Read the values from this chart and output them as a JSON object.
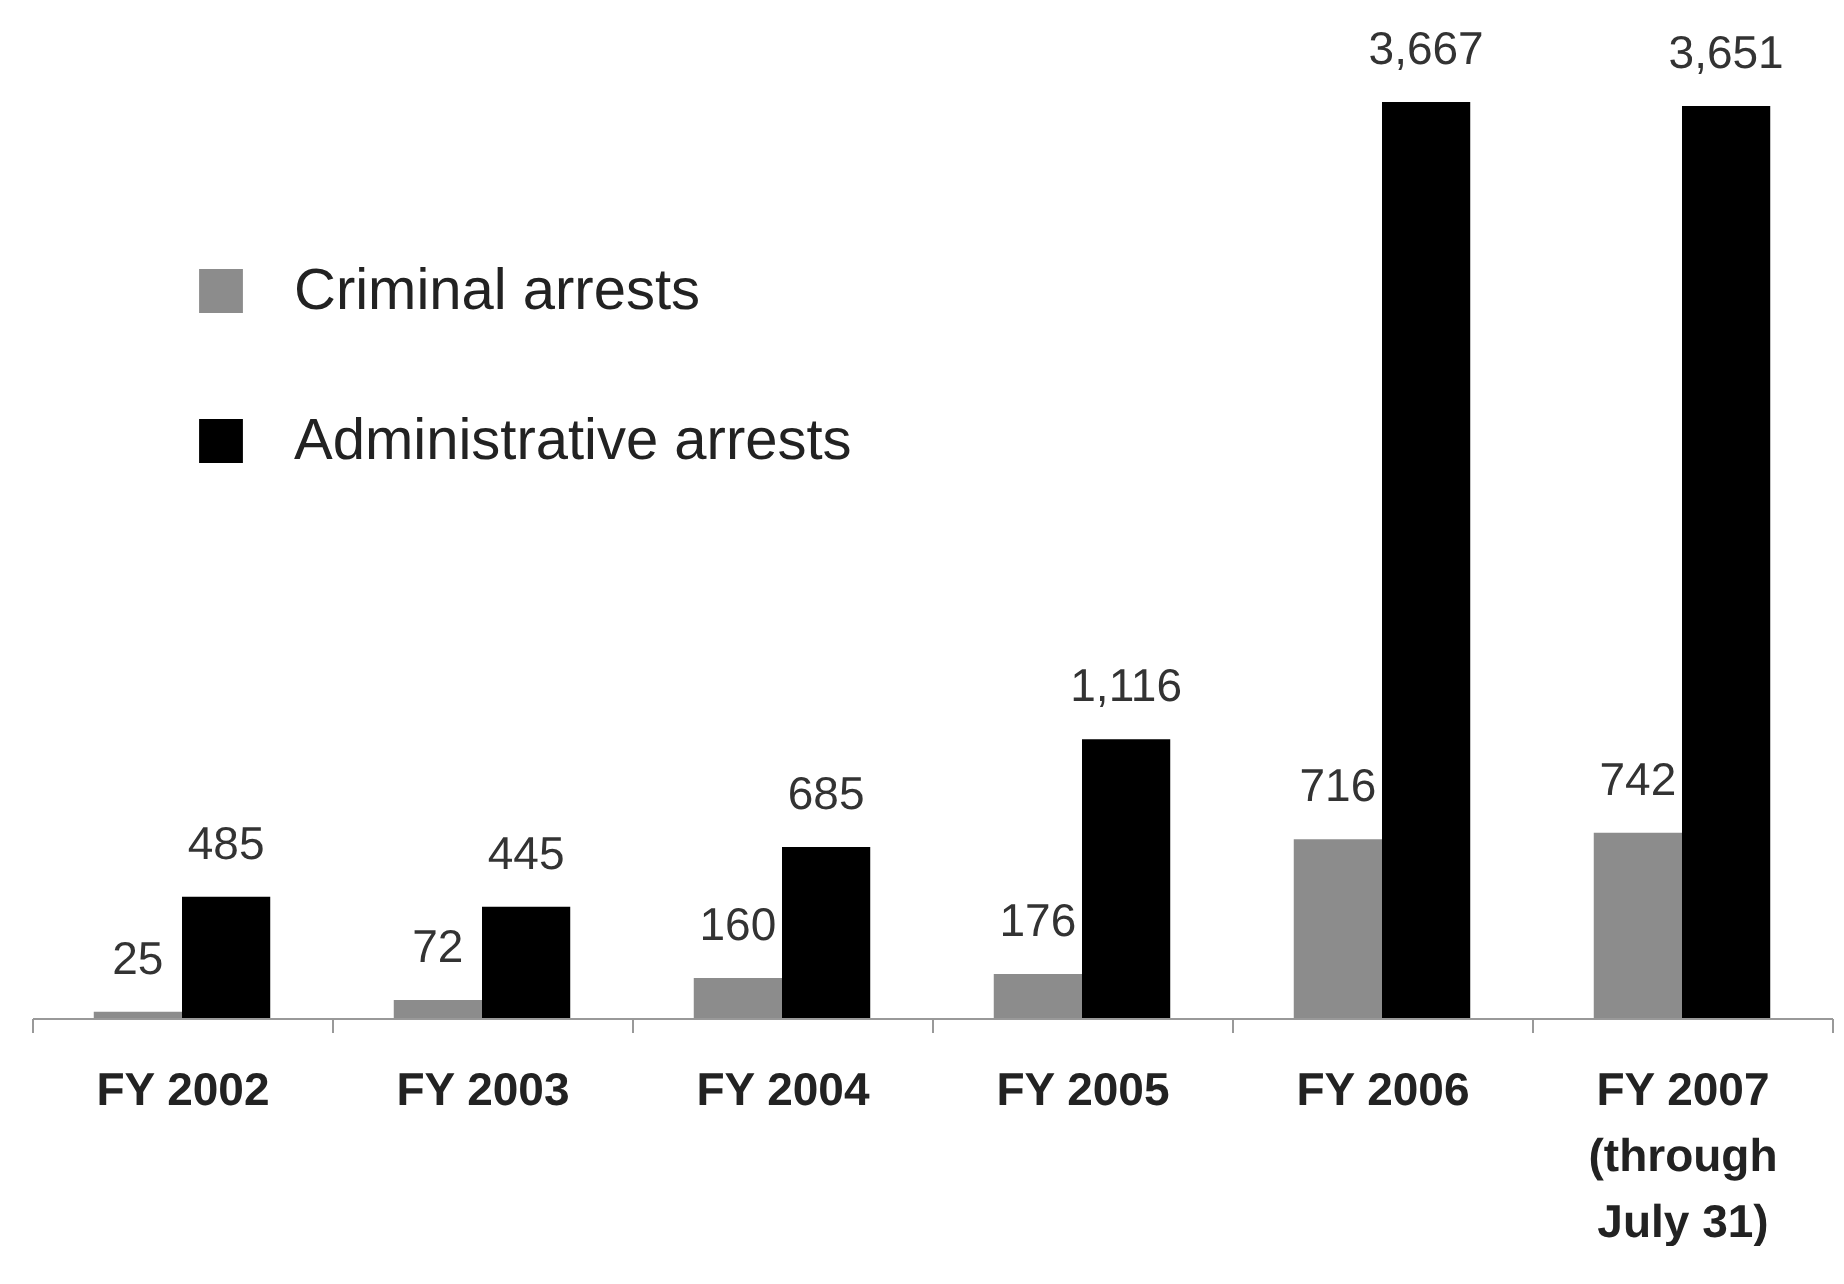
{
  "chart_data": {
    "type": "bar",
    "categories": [
      "FY 2002",
      "FY 2003",
      "FY 2004",
      "FY 2005",
      "FY 2006",
      "FY 2007\n(through\nJuly 31)"
    ],
    "series": [
      {
        "name": "Criminal arrests",
        "color": "#8c8c8c",
        "values": [
          25,
          72,
          160,
          176,
          716,
          742
        ],
        "value_labels": [
          "25",
          "72",
          "160",
          "176",
          "716",
          "742"
        ]
      },
      {
        "name": "Administrative arrests",
        "color": "#000000",
        "values": [
          485,
          445,
          685,
          1116,
          3667,
          3651
        ],
        "value_labels": [
          "485",
          "445",
          "685",
          "1,116",
          "3,667",
          "3,651"
        ]
      }
    ],
    "legend": "top left",
    "tick_labels": "x"
  }
}
